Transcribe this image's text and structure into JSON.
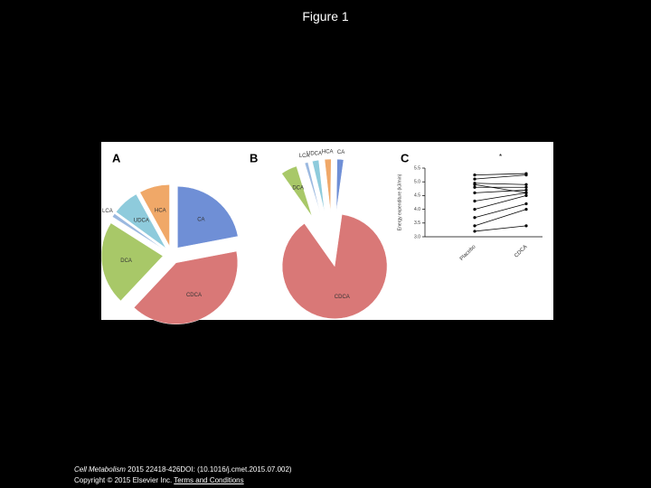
{
  "title": "Figure 1",
  "chart_data": [
    {
      "type": "pie",
      "panel": "A",
      "categories": [
        "CA",
        "CDCA",
        "DCA",
        "LCA",
        "UDCA",
        "HCA"
      ],
      "values": [
        22,
        40,
        22,
        1,
        7,
        8
      ],
      "colors": [
        "#6f8fd6",
        "#d97877",
        "#a8c868",
        "#9bb9e0",
        "#8ecbdc",
        "#f0a868"
      ]
    },
    {
      "type": "pie",
      "panel": "B",
      "categories": [
        "CDCA",
        "DCA",
        "LCA",
        "UDCA",
        "HCA",
        "CA"
      ],
      "values": [
        88,
        5,
        1,
        2,
        2,
        2
      ],
      "colors": [
        "#d97877",
        "#a8c868",
        "#9bb9e0",
        "#8ecbdc",
        "#f0a868",
        "#6f8fd6"
      ]
    },
    {
      "type": "paired",
      "panel": "C",
      "annotation": "*",
      "y_label": "Energy expenditure (kJ/min)",
      "categories": [
        "Placebo",
        "CDCA"
      ],
      "color": "#000000",
      "ylim": [
        3.0,
        5.5
      ],
      "yticks": [
        {
          "value": 3.0,
          "label": "3.0"
        },
        {
          "value": 3.5,
          "label": "3.5"
        },
        {
          "value": 4.0,
          "label": "4.0"
        },
        {
          "value": 4.5,
          "label": "4.5"
        },
        {
          "value": 5.0,
          "label": "5.0"
        },
        {
          "value": 5.5,
          "label": "5.5"
        }
      ],
      "series": [
        {
          "values": [
            5.25,
            5.3
          ]
        },
        {
          "values": [
            5.1,
            5.25
          ]
        },
        {
          "values": [
            4.95,
            4.9
          ]
        },
        {
          "values": [
            4.9,
            4.6
          ]
        },
        {
          "values": [
            4.8,
            4.8
          ]
        },
        {
          "values": [
            4.6,
            4.7
          ]
        },
        {
          "values": [
            4.3,
            4.6
          ]
        },
        {
          "values": [
            4.0,
            4.5
          ]
        },
        {
          "values": [
            3.7,
            4.2
          ]
        },
        {
          "values": [
            3.4,
            4.0
          ]
        },
        {
          "values": [
            3.2,
            3.4
          ]
        }
      ]
    }
  ],
  "footer": {
    "journal": "Cell Metabolism",
    "citation": " 2015 22418-426DOI: (10.1016/j.cmet.2015.07.002)",
    "copyright": "Copyright © 2015 Elsevier Inc. ",
    "link": "Terms and Conditions"
  }
}
